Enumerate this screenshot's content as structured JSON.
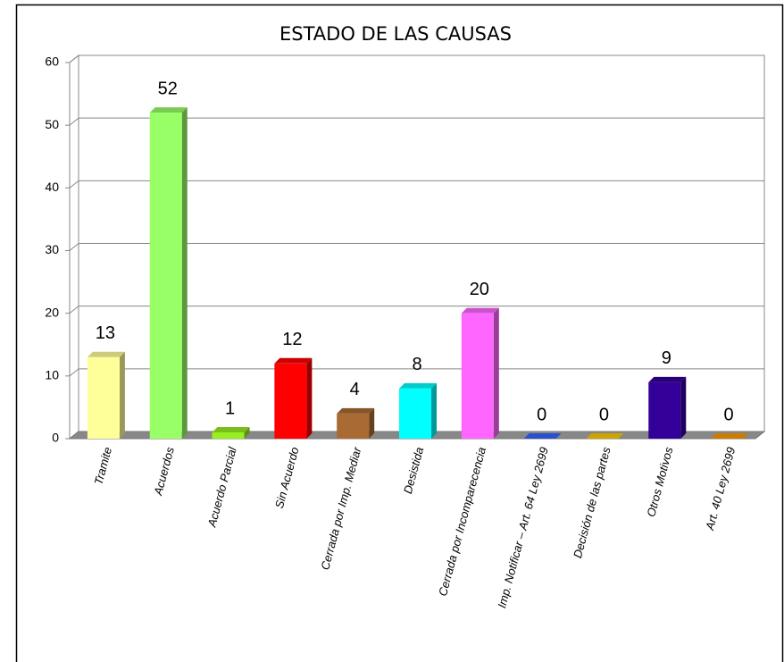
{
  "chart_data": {
    "type": "bar3d",
    "title": "ESTADO DE LAS CAUSAS",
    "categories": [
      "Tramite",
      "Acuerdos",
      "Acuerdo Parcial",
      "Sin Acuerdo",
      "Cerrada por Imp. Mediar",
      "Desistida",
      "Cerrada por Incomparecencia",
      "Imp. Notificar – Art. 64 Ley 2699",
      "Decisión de las partes",
      "Otros Motivos",
      "Art. 40 Ley 2699"
    ],
    "values": [
      13,
      52,
      1,
      12,
      4,
      8,
      20,
      0,
      0,
      9,
      0
    ],
    "colors": [
      "#ffff99",
      "#99ff66",
      "#99ee22",
      "#ff0000",
      "#aa6a33",
      "#00ffff",
      "#ff66ff",
      "#3366ff",
      "#ffcc00",
      "#330099",
      "#ff9900"
    ],
    "ylim": [
      0,
      60
    ],
    "yticks": [
      0,
      10,
      20,
      30,
      40,
      50,
      60
    ],
    "grid": true
  }
}
